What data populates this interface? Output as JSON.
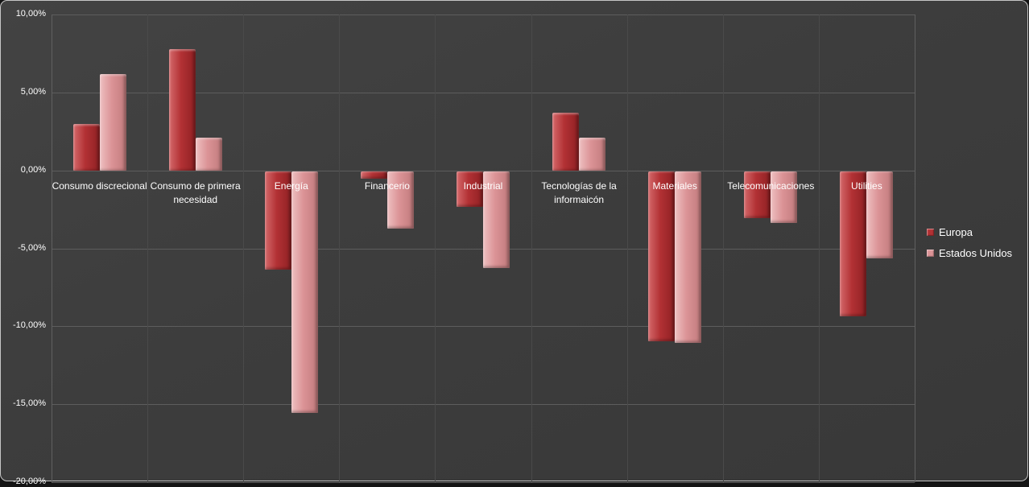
{
  "chart_data": {
    "type": "bar",
    "categories": [
      "Consumo discrecional",
      "Consumo de primera necesidad",
      "Energía",
      "Financerio",
      "Industrial",
      "Tecnologías de la informaicón",
      "Materiales",
      "Telecomunicaciones",
      "Utilities"
    ],
    "series": [
      {
        "name": "Europa",
        "color": "#b23134",
        "color_light": "#d4696b",
        "color_dark": "#8f2023",
        "values": [
          3.0,
          7.8,
          -6.3,
          -0.5,
          -2.3,
          3.7,
          -10.9,
          -3.0,
          -9.3
        ]
      },
      {
        "name": "Estados Unidos",
        "color": "#db9396",
        "color_light": "#eec0c1",
        "color_dark": "#c07a7c",
        "values": [
          6.2,
          2.1,
          -15.5,
          -3.7,
          -6.2,
          2.1,
          -11.0,
          -3.3,
          -5.6
        ]
      }
    ],
    "unit": "%",
    "ylim": [
      -20,
      10
    ],
    "yticks": [
      {
        "value": 10,
        "label": "10,00%"
      },
      {
        "value": 5,
        "label": "5,00%"
      },
      {
        "value": 0,
        "label": "0,00%"
      },
      {
        "value": -5,
        "label": "-5,00%"
      },
      {
        "value": -10,
        "label": "-10,00%"
      },
      {
        "value": -15,
        "label": "-15,00%"
      },
      {
        "value": -20,
        "label": "-20,00%"
      }
    ],
    "grid": true,
    "legend_position": "right"
  },
  "theme": {
    "background": "#3d3d3d",
    "plot_border": "#606060",
    "gridline": "#5d5d5d",
    "category_separator": "#4a4a4a",
    "text": "#ffffff",
    "frame_border": "#c6c6c6"
  }
}
